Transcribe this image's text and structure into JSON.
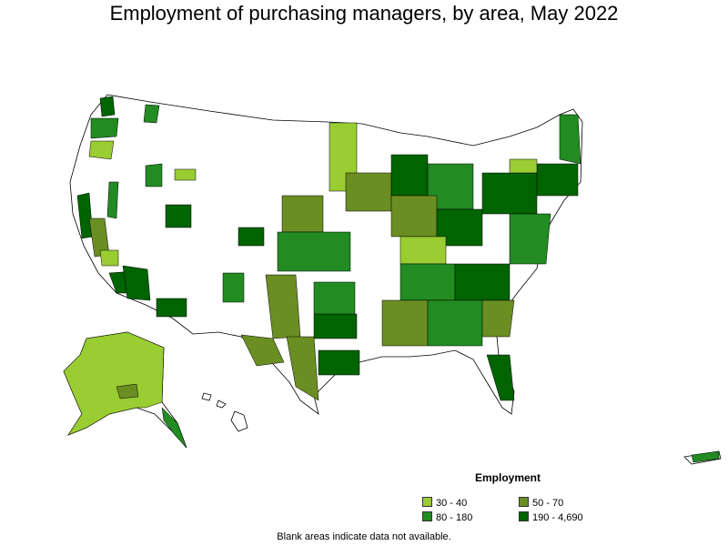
{
  "title": "Employment of purchasing managers, by area, May 2022",
  "legend": {
    "title": "Employment",
    "items": [
      {
        "label": "30 - 40",
        "color": "#9acd32"
      },
      {
        "label": "50 - 70",
        "color": "#6b8e23"
      },
      {
        "label": "80 - 180",
        "color": "#228b22"
      },
      {
        "label": "190 - 4,690",
        "color": "#006400"
      }
    ]
  },
  "footnote": "Blank areas indicate data not available.",
  "colors": {
    "no_data": "#ffffff",
    "border": "#000000"
  }
}
